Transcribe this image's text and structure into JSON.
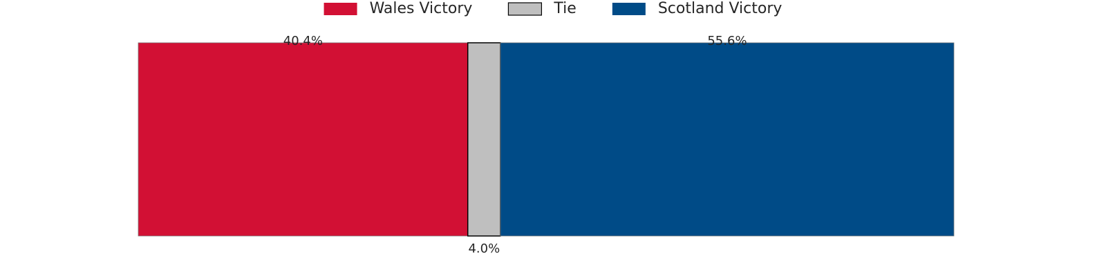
{
  "chart_data": {
    "type": "bar",
    "orientation": "horizontal-stacked",
    "categories": [
      ""
    ],
    "series": [
      {
        "name": "Wales Victory",
        "values": [
          40.4
        ],
        "label": "40.4%",
        "color": "#d21034"
      },
      {
        "name": "Tie",
        "values": [
          4.0
        ],
        "label": "4.0%",
        "color": "#bfbfbf"
      },
      {
        "name": "Scotland Victory",
        "values": [
          55.6
        ],
        "label": "55.6%",
        "color": "#004b87"
      }
    ],
    "xlim": [
      0,
      100
    ],
    "unit": "%",
    "grid": false,
    "axes_visible": false,
    "legend": "top-center"
  }
}
